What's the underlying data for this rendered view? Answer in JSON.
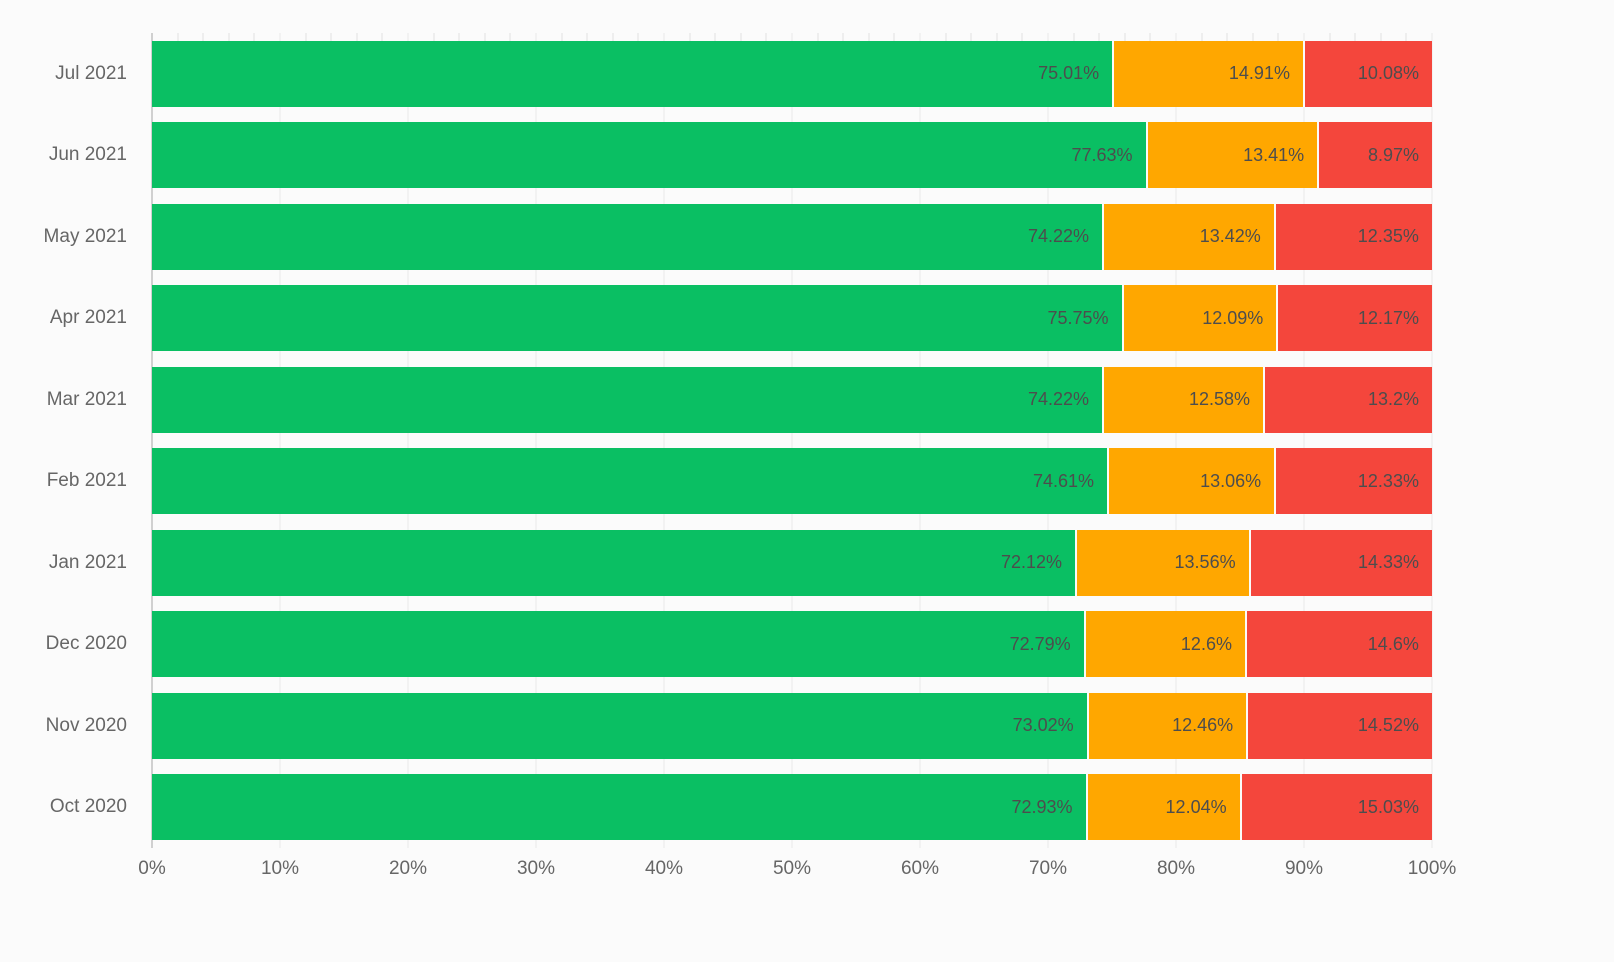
{
  "chart_data": {
    "type": "bar",
    "orientation": "horizontal",
    "stacked": true,
    "title": "",
    "xlabel": "",
    "ylabel": "",
    "xlim": [
      0,
      100
    ],
    "grid": true,
    "legend": "none",
    "value_suffix": "%",
    "categories": [
      "Jul 2021",
      "Jun 2021",
      "May 2021",
      "Apr 2021",
      "Mar 2021",
      "Feb 2021",
      "Jan 2021",
      "Dec 2020",
      "Nov 2020",
      "Oct 2020"
    ],
    "series": [
      {
        "name": "green",
        "color": "#0abf63",
        "values": [
          75.01,
          77.63,
          74.22,
          75.75,
          74.22,
          74.61,
          72.12,
          72.79,
          73.02,
          72.93
        ]
      },
      {
        "name": "orange",
        "color": "#ffa700",
        "values": [
          14.91,
          13.41,
          13.42,
          12.09,
          12.58,
          13.06,
          13.56,
          12.6,
          12.46,
          12.04
        ]
      },
      {
        "name": "red",
        "color": "#f4463c",
        "values": [
          10.08,
          8.97,
          12.35,
          12.17,
          13.2,
          12.33,
          14.33,
          14.6,
          14.52,
          15.03
        ]
      }
    ],
    "x_ticks": [
      "0%",
      "10%",
      "20%",
      "30%",
      "40%",
      "50%",
      "60%",
      "70%",
      "80%",
      "90%",
      "100%"
    ],
    "colors": {
      "background": "#fbfbfb",
      "gridline": "#e9e9e9",
      "axis_line": "#a6a6a6",
      "axis_label": "#666666",
      "value_label": "#4d4d4d"
    }
  }
}
